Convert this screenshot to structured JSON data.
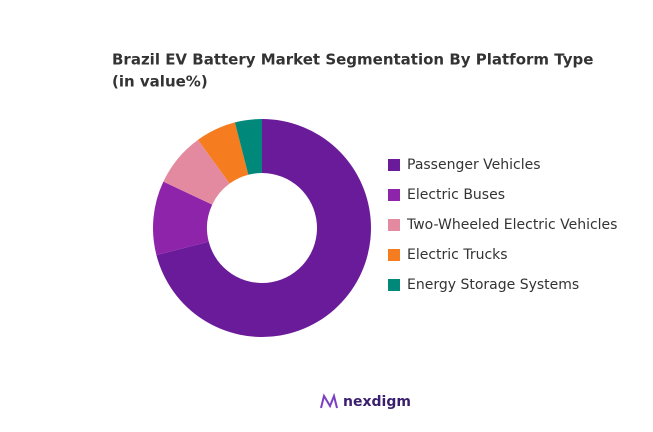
{
  "chart_data": {
    "type": "donut",
    "title": "Brazil EV Battery Market Segmentation By Platform Type",
    "subtitle": "(in value%)",
    "categories": [
      "Passenger Vehicles",
      "Electric Buses",
      "Two-Wheeled Electric Vehicles",
      "Electric Trucks",
      "Energy Storage Systems"
    ],
    "values": [
      71,
      11,
      8,
      6,
      4
    ],
    "colors": [
      "#6a1b9a",
      "#8e24aa",
      "#e48aa0",
      "#f57c1f",
      "#00897b"
    ],
    "legend": "right"
  },
  "brand": "nexdigm"
}
